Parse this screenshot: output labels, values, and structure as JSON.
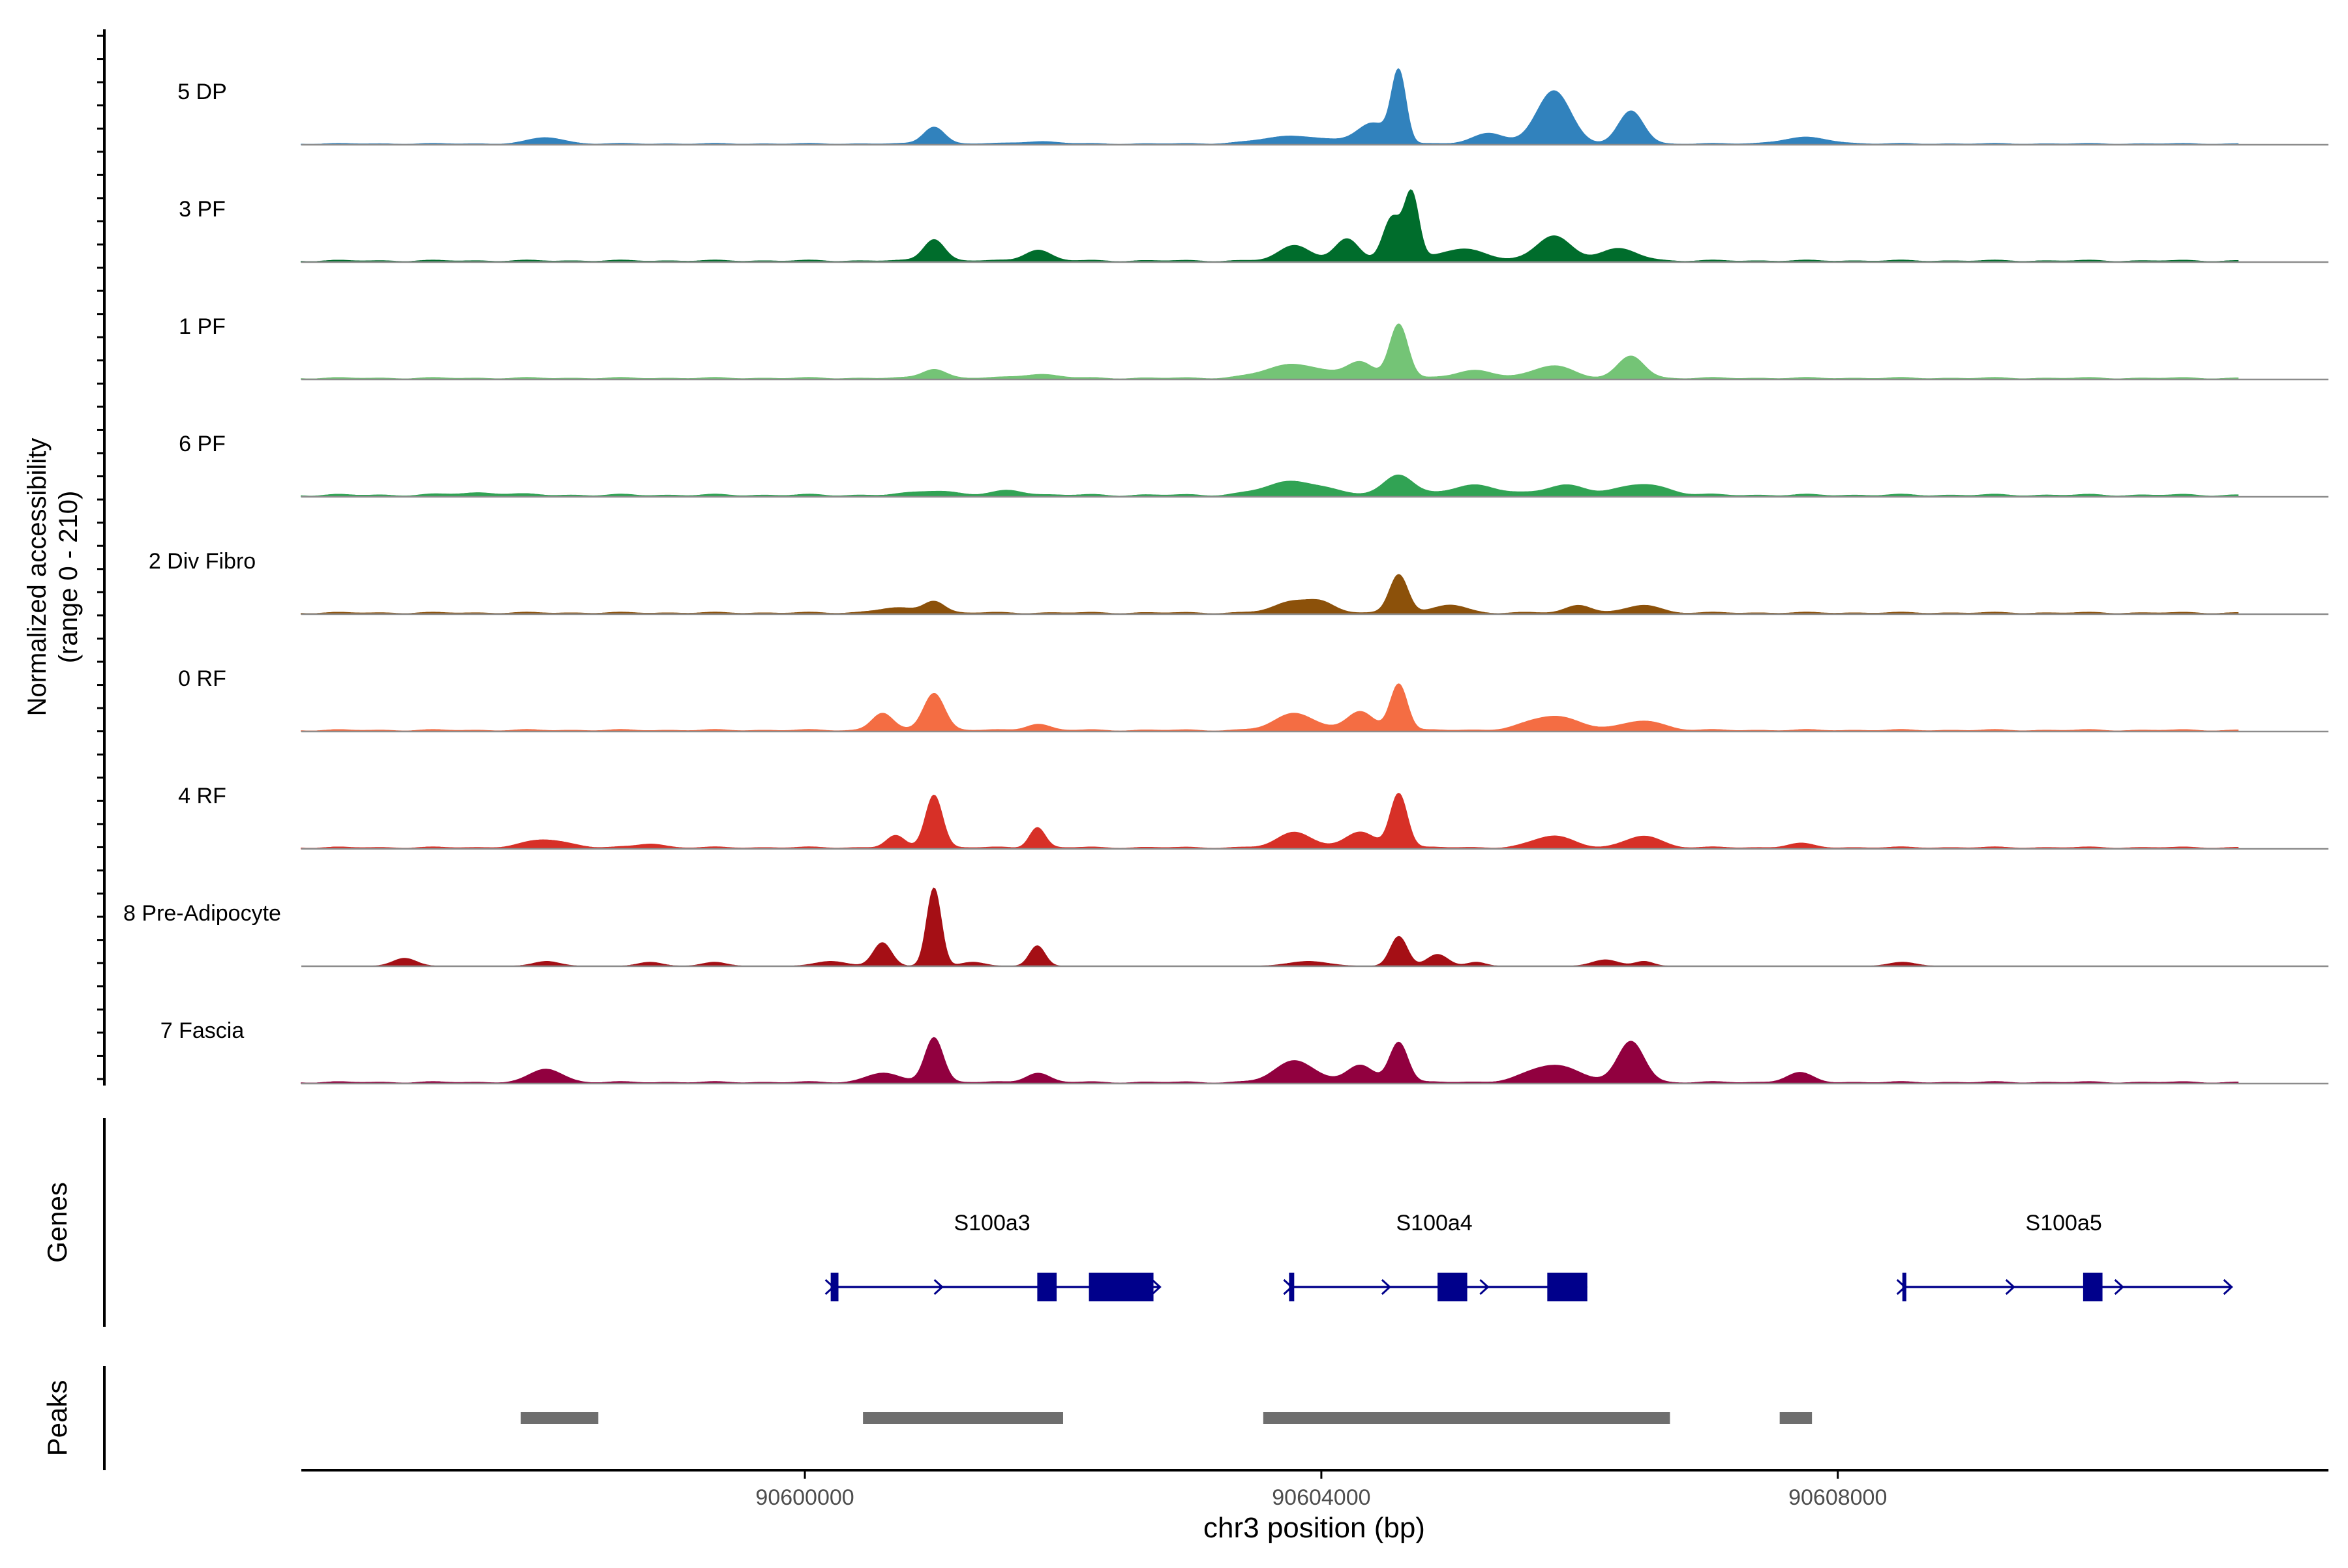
{
  "chart_data": {
    "type": "area",
    "title": "",
    "ylabel_line1": "Normalized accessibility",
    "ylabel_line2": "(range 0 - 210)",
    "ylim": [
      0,
      210
    ],
    "xlabel": "chr3 position (bp)",
    "xlim": [
      90596100,
      90611800
    ],
    "x_ticks": [
      90600000,
      90604000,
      90608000
    ],
    "x_tick_labels": [
      "90600000",
      "90604000",
      "90608000"
    ],
    "signal_range": [
      90596100,
      90611100
    ],
    "panels": {
      "genes_label": "Genes",
      "peaks_label": "Peaks"
    },
    "tracks": [
      {
        "name": "5 DP",
        "color": "#3182bd",
        "baseline": 2,
        "peaks": [
          [
            90598000,
            0.08,
            130
          ],
          [
            90601000,
            0.22,
            80
          ],
          [
            90601800,
            0.03,
            150
          ],
          [
            90603800,
            0.1,
            250
          ],
          [
            90604400,
            0.26,
            120
          ],
          [
            90604600,
            0.9,
            55
          ],
          [
            90605300,
            0.14,
            120
          ],
          [
            90605800,
            0.68,
            130
          ],
          [
            90606400,
            0.42,
            95
          ],
          [
            90607750,
            0.08,
            180
          ]
        ]
      },
      {
        "name": "3 PF",
        "color": "#006d2c",
        "baseline": 3,
        "peaks": [
          [
            90601000,
            0.28,
            80
          ],
          [
            90601800,
            0.14,
            100
          ],
          [
            90603800,
            0.2,
            120
          ],
          [
            90604200,
            0.28,
            90
          ],
          [
            90604550,
            0.56,
            70
          ],
          [
            90604700,
            0.84,
            55
          ],
          [
            90605100,
            0.15,
            180
          ],
          [
            90605800,
            0.32,
            130
          ],
          [
            90606300,
            0.15,
            150
          ]
        ]
      },
      {
        "name": "1 PF",
        "color": "#74c476",
        "baseline": 3,
        "peaks": [
          [
            90601000,
            0.12,
            90
          ],
          [
            90601800,
            0.05,
            150
          ],
          [
            90603800,
            0.18,
            220
          ],
          [
            90604300,
            0.2,
            100
          ],
          [
            90604600,
            0.7,
            70
          ],
          [
            90605200,
            0.1,
            150
          ],
          [
            90605800,
            0.16,
            150
          ],
          [
            90606400,
            0.28,
            100
          ]
        ]
      },
      {
        "name": "6 PF",
        "color": "#31a354",
        "baseline": 4,
        "peaks": [
          [
            90597500,
            0.03,
            200
          ],
          [
            90601000,
            0.06,
            150
          ],
          [
            90601600,
            0.06,
            120
          ],
          [
            90603800,
            0.18,
            220
          ],
          [
            90604600,
            0.27,
            110
          ],
          [
            90605200,
            0.13,
            180
          ],
          [
            90605900,
            0.13,
            160
          ],
          [
            90606500,
            0.14,
            180
          ]
        ]
      },
      {
        "name": "2 Div Fibro",
        "color": "#8c510a",
        "baseline": 3,
        "peaks": [
          [
            90600700,
            0.06,
            150
          ],
          [
            90601000,
            0.15,
            80
          ],
          [
            90603800,
            0.15,
            150
          ],
          [
            90604000,
            0.1,
            100
          ],
          [
            90604600,
            0.5,
            70
          ],
          [
            90605000,
            0.1,
            120
          ],
          [
            90606000,
            0.1,
            100
          ],
          [
            90606500,
            0.1,
            120
          ]
        ]
      },
      {
        "name": "0 RF",
        "color": "#f46d43",
        "baseline": 3,
        "peaks": [
          [
            90600600,
            0.22,
            80
          ],
          [
            90601000,
            0.48,
            80
          ],
          [
            90601800,
            0.08,
            90
          ],
          [
            90603800,
            0.22,
            150
          ],
          [
            90604300,
            0.24,
            100
          ],
          [
            90604600,
            0.6,
            65
          ],
          [
            90605800,
            0.18,
            200
          ],
          [
            90606500,
            0.12,
            150
          ]
        ]
      },
      {
        "name": "4 RF",
        "color": "#d73027",
        "baseline": 3,
        "peaks": [
          [
            90598000,
            0.1,
            170
          ],
          [
            90598800,
            0.05,
            100
          ],
          [
            90600700,
            0.15,
            70
          ],
          [
            90601000,
            0.68,
            65
          ],
          [
            90601800,
            0.26,
            60
          ],
          [
            90603800,
            0.2,
            130
          ],
          [
            90604300,
            0.2,
            110
          ],
          [
            90604600,
            0.7,
            65
          ],
          [
            90605800,
            0.15,
            150
          ],
          [
            90606500,
            0.15,
            130
          ],
          [
            90607700,
            0.05,
            100
          ]
        ]
      },
      {
        "name": "8 Pre-Adipocyte",
        "color": "#a50f15",
        "baseline": 0,
        "peaks": [
          [
            90596900,
            0.1,
            90
          ],
          [
            90598000,
            0.06,
            100
          ],
          [
            90598800,
            0.05,
            90
          ],
          [
            90599300,
            0.05,
            90
          ],
          [
            90600200,
            0.06,
            120
          ],
          [
            90600600,
            0.3,
            70
          ],
          [
            90601000,
            1.0,
            55
          ],
          [
            90601300,
            0.05,
            90
          ],
          [
            90601800,
            0.26,
            60
          ],
          [
            90603900,
            0.06,
            150
          ],
          [
            90604600,
            0.38,
            65
          ],
          [
            90604900,
            0.15,
            80
          ],
          [
            90605200,
            0.05,
            70
          ],
          [
            90606200,
            0.08,
            100
          ],
          [
            90606500,
            0.06,
            70
          ],
          [
            90608500,
            0.05,
            100
          ]
        ]
      },
      {
        "name": "7 Fascia",
        "color": "#91003f",
        "baseline": 3,
        "peaks": [
          [
            90598000,
            0.17,
            120
          ],
          [
            90600600,
            0.12,
            120
          ],
          [
            90601000,
            0.58,
            70
          ],
          [
            90601800,
            0.12,
            90
          ],
          [
            90603800,
            0.28,
            150
          ],
          [
            90604300,
            0.22,
            100
          ],
          [
            90604600,
            0.52,
            70
          ],
          [
            90605800,
            0.22,
            200
          ],
          [
            90606400,
            0.52,
            100
          ],
          [
            90607700,
            0.12,
            100
          ]
        ]
      }
    ],
    "genes": [
      {
        "name": "S100a3",
        "start": 90600200,
        "end": 90602700,
        "strand": "+",
        "exons": [
          [
            90600200,
            90600260
          ],
          [
            90601800,
            90601950
          ],
          [
            90602200,
            90602700
          ]
        ]
      },
      {
        "name": "S100a4",
        "start": 90603750,
        "end": 90606000,
        "strand": "+",
        "exons": [
          [
            90603750,
            90603790
          ],
          [
            90604900,
            90605130
          ],
          [
            90605750,
            90606060
          ]
        ]
      },
      {
        "name": "S100a5",
        "start": 90608500,
        "end": 90611000,
        "strand": "+",
        "exons": [
          [
            90608500,
            90608520
          ],
          [
            90609900,
            90610050
          ]
        ]
      }
    ],
    "peak_regions": [
      [
        90597800,
        90598400
      ],
      [
        90600450,
        90602000
      ],
      [
        90603550,
        90606700
      ],
      [
        90607550,
        90607800
      ]
    ]
  }
}
